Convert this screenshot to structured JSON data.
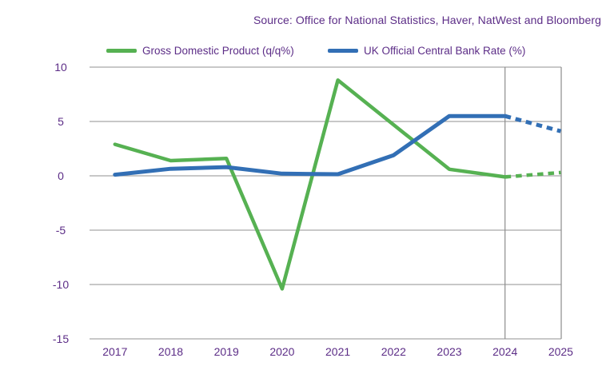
{
  "source_text": "Source: Office for National Statistics, Haver, NatWest and Bloomberg",
  "colors": {
    "purple_text": "#5c2d87",
    "gdp_green": "#56b152",
    "rate_blue": "#326fb5",
    "gridline_gray": "#a8a8a8",
    "separator_gray": "#8c8c8c"
  },
  "legend": [
    {
      "label": "Gross Domestic Product (q/q%)",
      "color": "#56b152",
      "key": "gdp"
    },
    {
      "label": "UK Official Central Bank Rate (%)",
      "color": "#326fb5",
      "key": "rate"
    }
  ],
  "chart_data": {
    "type": "line",
    "x": [
      2017,
      2018,
      2019,
      2020,
      2021,
      2022,
      2023,
      2024,
      2025
    ],
    "series": [
      {
        "name": "Gross Domestic Product (q/q%)",
        "key": "gdp",
        "color": "#56b152",
        "values": [
          2.9,
          1.4,
          1.6,
          -10.4,
          8.8,
          4.7,
          0.6,
          -0.1,
          0.3
        ],
        "solid_until_x": 2024,
        "forecast_style": "dotted"
      },
      {
        "name": "UK Official Central Bank Rate (%)",
        "key": "rate",
        "color": "#326fb5",
        "values": [
          0.1,
          0.65,
          0.8,
          0.2,
          0.15,
          1.9,
          5.5,
          5.5,
          4.1
        ],
        "solid_until_x": 2024,
        "forecast_style": "dotted"
      }
    ],
    "ylim": [
      -15,
      10
    ],
    "yticks": [
      10,
      5,
      0,
      -5,
      -10,
      -15
    ],
    "forecast_separator_x": 2024,
    "grid": "horizontal-only",
    "right_border": true,
    "legend_position": "top"
  }
}
